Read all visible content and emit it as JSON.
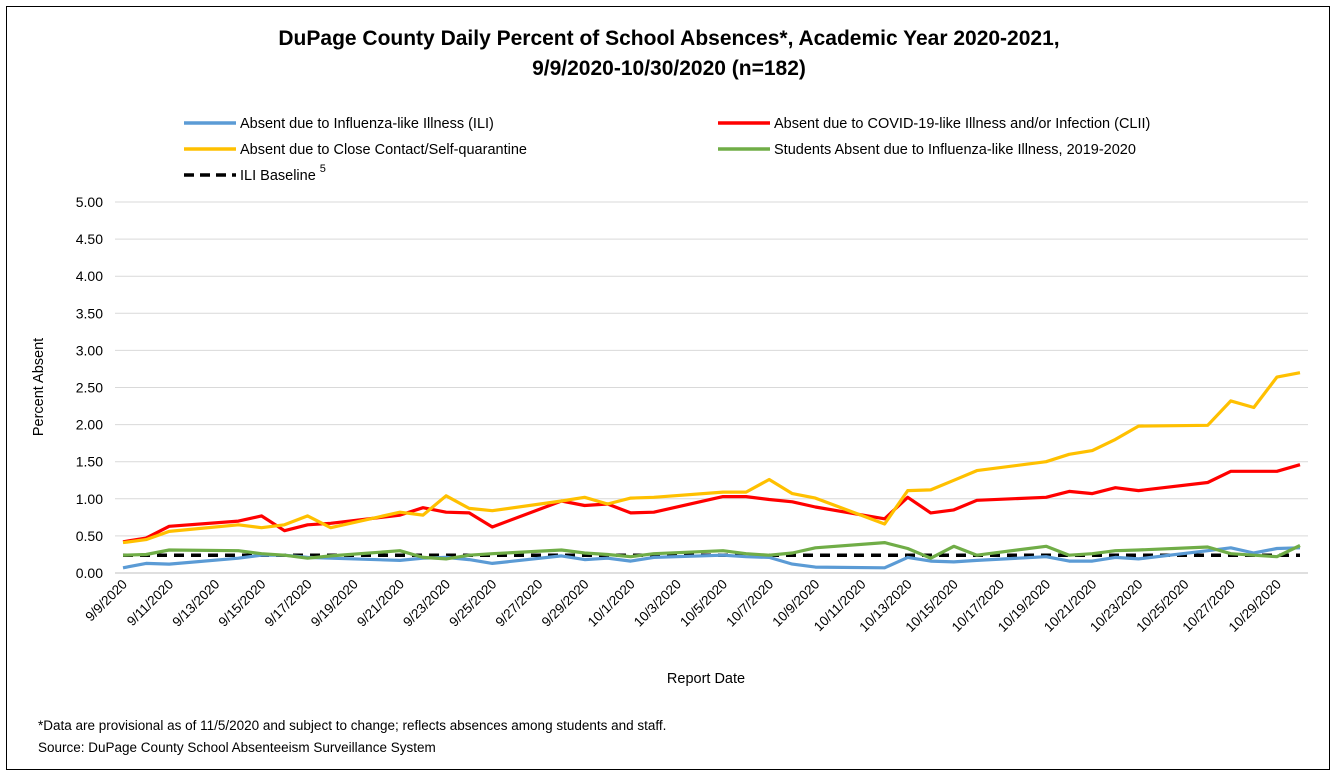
{
  "chart_data": {
    "type": "line",
    "title_line1": "DuPage County Daily Percent of School Absences*, Academic Year 2020-2021,",
    "title_line2": "9/9/2020-10/30/2020 (n=182)",
    "xlabel": "Report Date",
    "ylabel": "Percent Absent",
    "ylim": [
      0,
      5
    ],
    "yticks": [
      "0.00",
      "0.50",
      "1.00",
      "1.50",
      "2.00",
      "2.50",
      "3.00",
      "3.50",
      "4.00",
      "4.50",
      "5.00"
    ],
    "grid": true,
    "legend_position": "top",
    "x_tick_labels": [
      "9/9/2020",
      "9/11/2020",
      "9/13/2020",
      "9/15/2020",
      "9/17/2020",
      "9/19/2020",
      "9/21/2020",
      "9/23/2020",
      "9/25/2020",
      "9/27/2020",
      "9/29/2020",
      "10/1/2020",
      "10/3/2020",
      "10/5/2020",
      "10/7/2020",
      "10/9/2020",
      "10/11/2020",
      "10/13/2020",
      "10/15/2020",
      "10/17/2020",
      "10/19/2020",
      "10/21/2020",
      "10/23/2020",
      "10/25/2020",
      "10/27/2020",
      "10/29/2020"
    ],
    "x": [
      "9/9/2020",
      "9/10/2020",
      "9/11/2020",
      "9/14/2020",
      "9/15/2020",
      "9/16/2020",
      "9/17/2020",
      "9/18/2020",
      "9/21/2020",
      "9/22/2020",
      "9/23/2020",
      "9/24/2020",
      "9/25/2020",
      "9/28/2020",
      "9/29/2020",
      "9/30/2020",
      "10/1/2020",
      "10/2/2020",
      "10/5/2020",
      "10/6/2020",
      "10/7/2020",
      "10/8/2020",
      "10/9/2020",
      "10/12/2020",
      "10/13/2020",
      "10/14/2020",
      "10/15/2020",
      "10/16/2020",
      "10/19/2020",
      "10/20/2020",
      "10/21/2020",
      "10/22/2020",
      "10/23/2020",
      "10/26/2020",
      "10/27/2020",
      "10/28/2020",
      "10/29/2020",
      "10/30/2020"
    ],
    "series": [
      {
        "name": "Absent due to Influenza-like Illness (ILI)",
        "color": "#5B9BD5",
        "dash": false,
        "values": [
          0.07,
          0.13,
          0.12,
          0.2,
          0.24,
          0.24,
          0.21,
          0.2,
          0.17,
          0.2,
          0.21,
          0.18,
          0.13,
          0.23,
          0.18,
          0.2,
          0.16,
          0.21,
          0.24,
          0.22,
          0.21,
          0.12,
          0.08,
          0.07,
          0.21,
          0.16,
          0.15,
          0.17,
          0.22,
          0.16,
          0.16,
          0.21,
          0.19,
          0.3,
          0.34,
          0.27,
          0.33,
          0.34
        ]
      },
      {
        "name": "Absent due to COVID-19-like Illness and/or Infection (CLII)",
        "color": "#FF0000",
        "dash": false,
        "values": [
          0.42,
          0.47,
          0.63,
          0.7,
          0.77,
          0.57,
          0.65,
          0.67,
          0.78,
          0.88,
          0.82,
          0.81,
          0.62,
          0.97,
          0.91,
          0.93,
          0.81,
          0.82,
          1.03,
          1.03,
          0.99,
          0.96,
          0.89,
          0.73,
          1.02,
          0.81,
          0.85,
          0.98,
          1.02,
          1.1,
          1.07,
          1.15,
          1.11,
          1.22,
          1.37,
          1.37,
          1.37,
          1.46
        ]
      },
      {
        "name": "Absent due to Close Contact/Self-quarantine",
        "color": "#FFC000",
        "dash": false,
        "values": [
          0.41,
          0.45,
          0.56,
          0.65,
          0.61,
          0.65,
          0.77,
          0.61,
          0.82,
          0.78,
          1.04,
          0.87,
          0.84,
          0.97,
          1.02,
          0.93,
          1.01,
          1.02,
          1.09,
          1.09,
          1.26,
          1.07,
          1.01,
          0.66,
          1.11,
          1.12,
          1.25,
          1.38,
          1.5,
          1.6,
          1.65,
          1.8,
          1.98,
          1.99,
          2.32,
          2.23,
          2.64,
          2.7
        ]
      },
      {
        "name": "Students Absent due to Influenza-like Illness, 2019-2020",
        "color": "#70AD47",
        "dash": false,
        "values": [
          0.24,
          0.25,
          0.31,
          0.3,
          0.26,
          0.24,
          0.2,
          0.23,
          0.3,
          0.21,
          0.19,
          0.24,
          0.26,
          0.31,
          0.27,
          0.25,
          0.22,
          0.26,
          0.3,
          0.26,
          0.24,
          0.27,
          0.34,
          0.41,
          0.33,
          0.2,
          0.36,
          0.24,
          0.36,
          0.24,
          0.26,
          0.3,
          0.31,
          0.35,
          0.26,
          0.24,
          0.22,
          0.37
        ]
      },
      {
        "name": "ILI Baseline",
        "name_sup": "5",
        "color": "#000000",
        "dash": true,
        "values": [
          0.24,
          0.24,
          0.24,
          0.24,
          0.24,
          0.24,
          0.24,
          0.24,
          0.24,
          0.24,
          0.24,
          0.24,
          0.24,
          0.24,
          0.24,
          0.24,
          0.24,
          0.24,
          0.24,
          0.24,
          0.24,
          0.24,
          0.24,
          0.24,
          0.24,
          0.24,
          0.24,
          0.24,
          0.24,
          0.24,
          0.24,
          0.24,
          0.24,
          0.24,
          0.24,
          0.24,
          0.24,
          0.24
        ]
      }
    ]
  },
  "footnotes": {
    "note": "*Data are provisional as of 11/5/2020 and subject to change; reflects absences among students and staff.",
    "source": "Source: DuPage County School Absenteeism Surveillance System"
  }
}
